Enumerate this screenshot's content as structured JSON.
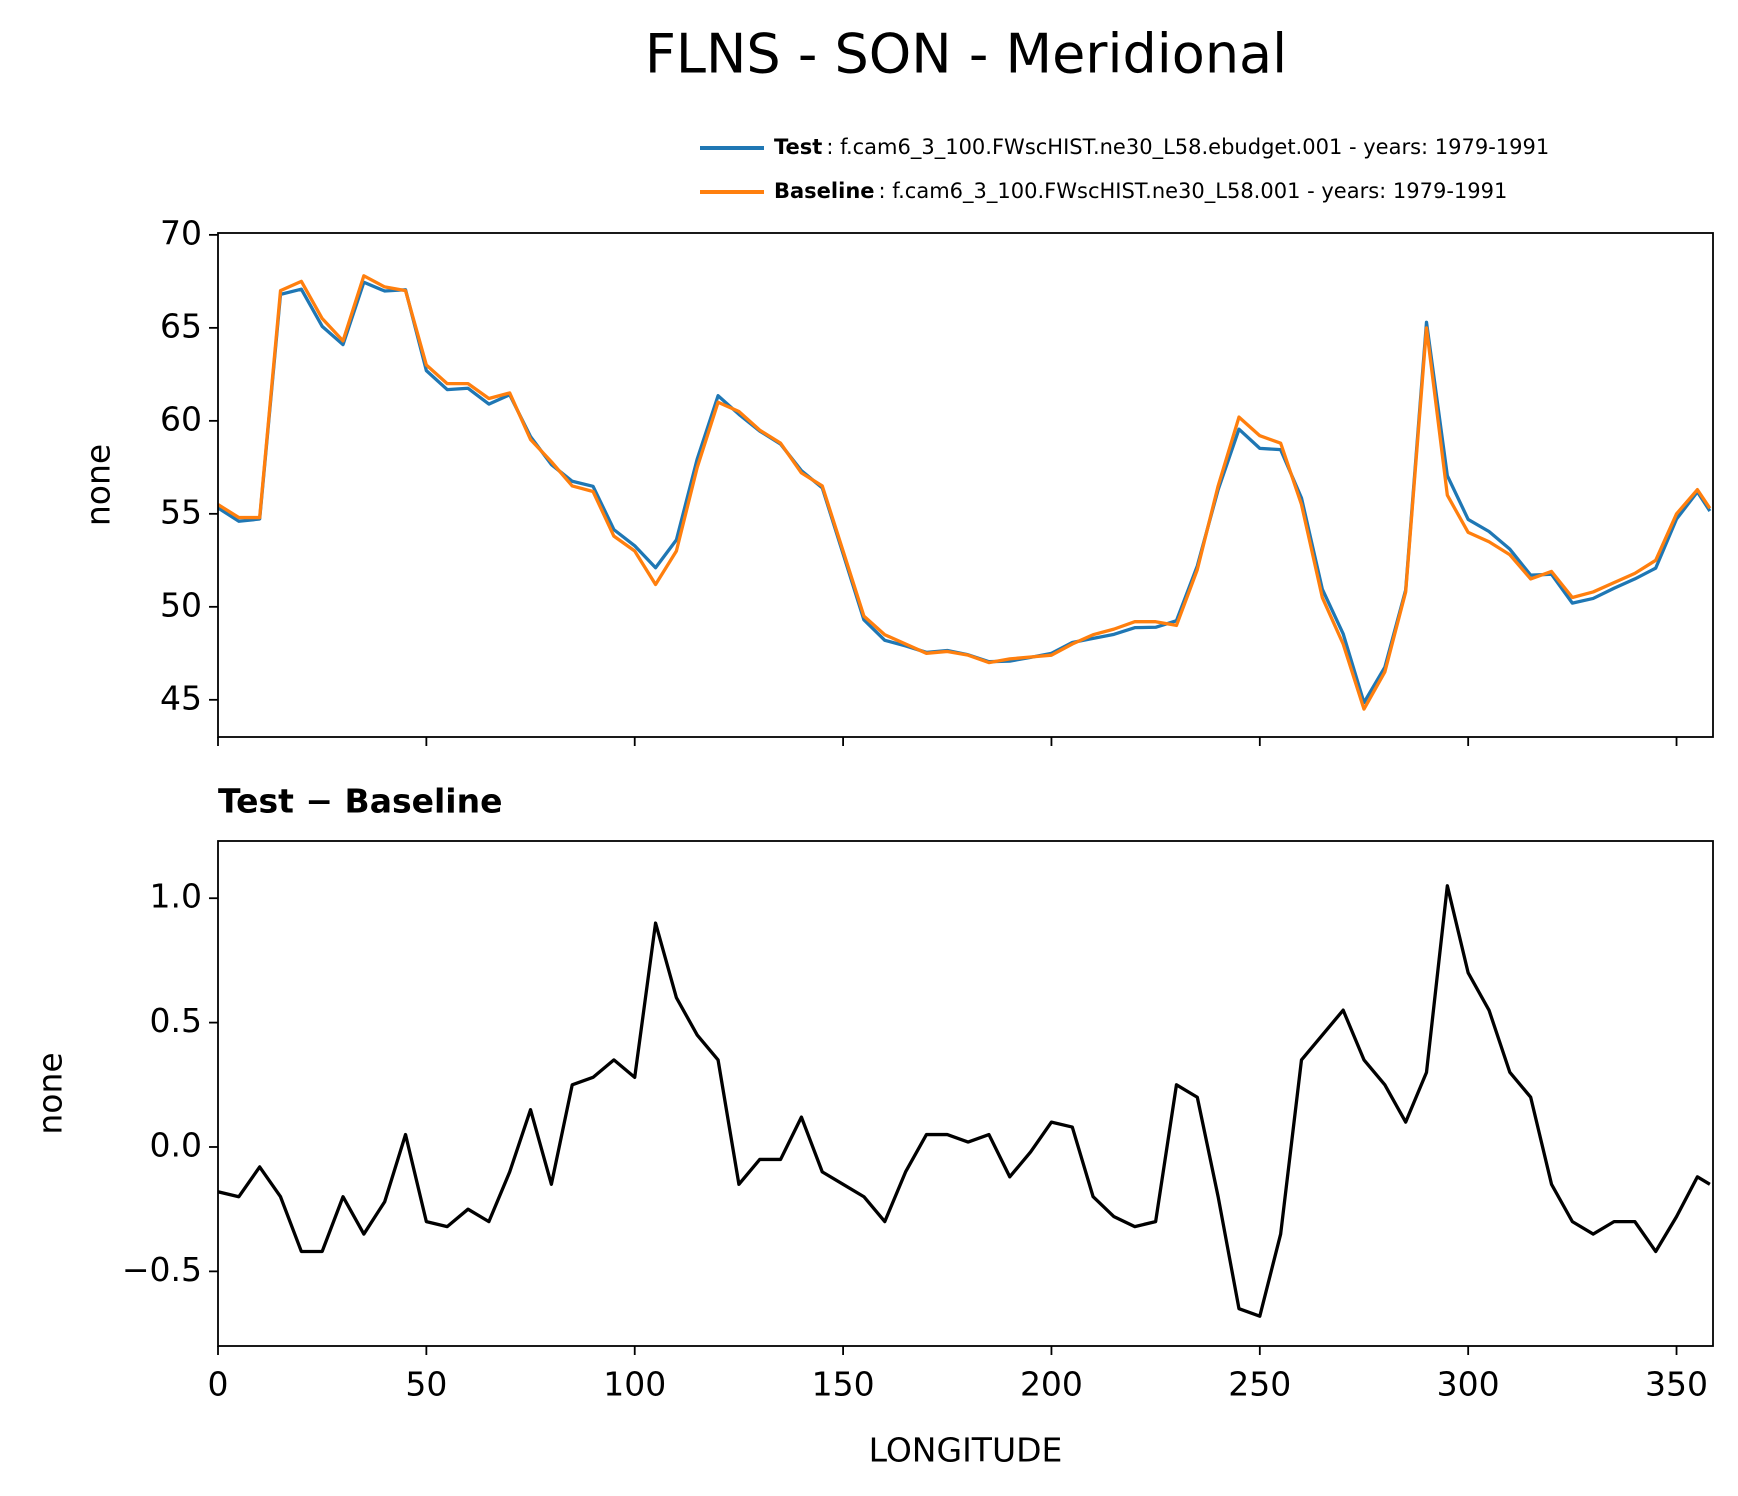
{
  "title": "FLNS - SON - Meridional",
  "chart_data": [
    {
      "type": "line",
      "ylabel": "none",
      "x": [
        0,
        5,
        10,
        15,
        20,
        25,
        30,
        35,
        40,
        45,
        50,
        55,
        60,
        65,
        70,
        75,
        80,
        85,
        90,
        95,
        100,
        105,
        110,
        115,
        120,
        125,
        130,
        135,
        140,
        145,
        150,
        155,
        160,
        165,
        170,
        175,
        180,
        185,
        190,
        195,
        200,
        205,
        210,
        215,
        220,
        225,
        230,
        235,
        240,
        245,
        250,
        255,
        260,
        265,
        270,
        275,
        280,
        285,
        290,
        295,
        300,
        305,
        310,
        315,
        320,
        325,
        330,
        335,
        340,
        345,
        350,
        355,
        358
      ],
      "series": [
        {
          "name": "Test",
          "detail": ": f.cam6_3_100.FWscHIST.ne30_L58.ebudget.001 - years: 1979-1991",
          "color": "#1f77b4",
          "values": [
            55.32,
            54.6,
            54.72,
            66.8,
            67.08,
            65.08,
            64.1,
            67.45,
            66.98,
            67.05,
            62.7,
            61.68,
            61.75,
            60.9,
            61.4,
            59.15,
            57.65,
            56.75,
            56.48,
            54.15,
            53.28,
            52.1,
            53.6,
            57.95,
            61.35,
            60.35,
            59.45,
            58.75,
            57.32,
            56.4,
            52.85,
            49.3,
            48.2,
            47.9,
            47.55,
            47.65,
            47.42,
            47.05,
            47.08,
            47.28,
            47.5,
            48.08,
            48.3,
            48.52,
            48.88,
            48.9,
            49.25,
            52.2,
            56.3,
            59.55,
            58.52,
            58.45,
            55.85,
            50.95,
            48.55,
            44.85,
            46.75,
            50.9,
            65.3,
            57.05,
            54.7,
            54.05,
            53.1,
            51.7,
            51.75,
            50.2,
            50.45,
            51,
            51.5,
            52.08,
            54.72,
            56.18,
            55.15
          ]
        },
        {
          "name": "Baseline",
          "detail": ": f.cam6_3_100.FWscHIST.ne30_L58.001 - years: 1979-1991",
          "color": "#ff7f0e",
          "values": [
            55.5,
            54.8,
            54.8,
            67,
            67.5,
            65.5,
            64.3,
            67.8,
            67.2,
            67,
            63,
            62,
            62,
            61.2,
            61.5,
            59,
            57.8,
            56.5,
            56.2,
            53.8,
            53,
            51.2,
            53,
            57.5,
            61,
            60.5,
            59.5,
            58.8,
            57.2,
            56.5,
            53,
            49.5,
            48.5,
            48,
            47.5,
            47.6,
            47.4,
            47,
            47.2,
            47.3,
            47.4,
            48,
            48.5,
            48.8,
            49.2,
            49.2,
            49,
            52,
            56.5,
            60.2,
            59.2,
            58.8,
            55.5,
            50.5,
            48,
            44.5,
            46.5,
            50.8,
            65,
            56,
            54,
            53.5,
            52.8,
            51.5,
            51.9,
            50.5,
            50.8,
            51.3,
            51.8,
            52.5,
            55,
            56.3,
            55.3
          ]
        }
      ],
      "xlim": [
        0,
        358.75
      ],
      "ylim": [
        43.0,
        70.1
      ],
      "yticks": [
        45,
        50,
        55,
        60,
        65,
        70
      ],
      "legend": "upper right"
    },
    {
      "type": "line",
      "title": "Test − Baseline",
      "xlabel": "LONGITUDE",
      "ylabel": "none",
      "x": [
        0,
        5,
        10,
        15,
        20,
        25,
        30,
        35,
        40,
        45,
        50,
        55,
        60,
        65,
        70,
        75,
        80,
        85,
        90,
        95,
        100,
        105,
        110,
        115,
        120,
        125,
        130,
        135,
        140,
        145,
        150,
        155,
        160,
        165,
        170,
        175,
        180,
        185,
        190,
        195,
        200,
        205,
        210,
        215,
        220,
        225,
        230,
        235,
        240,
        245,
        250,
        255,
        260,
        265,
        270,
        275,
        280,
        285,
        290,
        295,
        300,
        305,
        310,
        315,
        320,
        325,
        330,
        335,
        340,
        345,
        350,
        355,
        358
      ],
      "series": [
        {
          "color": "#000000",
          "values": [
            -0.18,
            -0.2,
            -0.08,
            -0.2,
            -0.42,
            -0.42,
            -0.2,
            -0.35,
            -0.22,
            0.05,
            -0.3,
            -0.32,
            -0.25,
            -0.3,
            -0.1,
            0.15,
            -0.15,
            0.25,
            0.28,
            0.35,
            0.28,
            0.9,
            0.6,
            0.45,
            0.35,
            -0.15,
            -0.05,
            -0.05,
            0.12,
            -0.1,
            -0.15,
            -0.2,
            -0.3,
            -0.1,
            0.05,
            0.05,
            0.02,
            0.05,
            -0.12,
            -0.02,
            0.1,
            0.08,
            -0.2,
            -0.28,
            -0.32,
            -0.3,
            0.25,
            0.2,
            -0.2,
            -0.65,
            -0.68,
            -0.35,
            0.35,
            0.45,
            0.55,
            0.35,
            0.25,
            0.1,
            0.3,
            1.05,
            0.7,
            0.55,
            0.3,
            0.2,
            -0.15,
            -0.3,
            -0.35,
            -0.3,
            -0.3,
            -0.42,
            -0.28,
            -0.12,
            -0.15
          ]
        }
      ],
      "xlim": [
        0,
        358.75
      ],
      "ylim": [
        -0.8,
        1.23
      ],
      "xticks": [
        0,
        50,
        100,
        150,
        200,
        250,
        300,
        350
      ],
      "yticks": [
        {
          "value": -0.5,
          "label": "−0.5"
        },
        {
          "value": 0.0,
          "label": "0.0"
        },
        {
          "value": 0.5,
          "label": "0.5"
        },
        {
          "value": 1.0,
          "label": "1.0"
        }
      ]
    }
  ]
}
